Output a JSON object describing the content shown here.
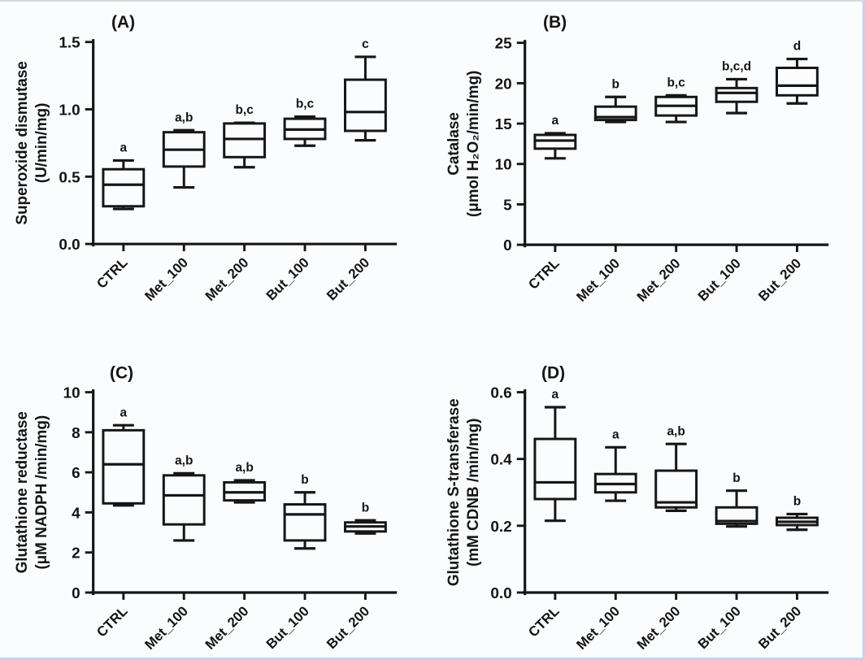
{
  "figure": {
    "background": "#fbfcfd",
    "ink_color": "#161616",
    "box_fill": "#fbfcfd",
    "border_top_color": "#d8d9dc",
    "border_accent_color": "#c3d2ee",
    "panel_order": [
      "(A)",
      "(B)",
      "(C)",
      "(D)"
    ]
  },
  "chart_data": [
    {
      "type": "box",
      "panel_label": "(A)",
      "title": "",
      "xlabel": "",
      "ylabel": "Superoxide dismutase (U/min/mg)",
      "ylabel_lines": [
        "Superoxide dismutase",
        "(U/min/mg)"
      ],
      "ylim": [
        0,
        1.5
      ],
      "yticks": [
        0,
        0.5,
        1.0,
        1.5
      ],
      "ytick_labels": [
        "0.0",
        "0.5",
        "1.0",
        "1.5"
      ],
      "grid": "off",
      "legend": "none",
      "categories": [
        "CTRL",
        "Met_100",
        "Met_200",
        "But_100",
        "But_200"
      ],
      "boxes": [
        {
          "category": "CTRL",
          "whislo": 0.26,
          "q1": 0.28,
          "med": 0.44,
          "q3": 0.555,
          "whishi": 0.62,
          "annotation": "a"
        },
        {
          "category": "Met_100",
          "whislo": 0.42,
          "q1": 0.575,
          "med": 0.7,
          "q3": 0.83,
          "whishi": 0.845,
          "annotation": "a,b"
        },
        {
          "category": "Met_200",
          "whislo": 0.57,
          "q1": 0.645,
          "med": 0.78,
          "q3": 0.895,
          "whishi": 0.9,
          "annotation": "b,c"
        },
        {
          "category": "But_100",
          "whislo": 0.73,
          "q1": 0.78,
          "med": 0.85,
          "q3": 0.93,
          "whishi": 0.945,
          "annotation": "b,c"
        },
        {
          "category": "But_200",
          "whislo": 0.77,
          "q1": 0.84,
          "med": 0.98,
          "q3": 1.22,
          "whishi": 1.39,
          "annotation": "c"
        }
      ]
    },
    {
      "type": "box",
      "panel_label": "(B)",
      "title": "",
      "xlabel": "",
      "ylabel": "Catalase (μmol H₂O₂/min/mg)",
      "ylabel_lines": [
        "Catalase",
        "(μmol H₂O₂/min/mg)"
      ],
      "ylim": [
        0,
        25
      ],
      "yticks": [
        0,
        5,
        10,
        15,
        20,
        25
      ],
      "ytick_labels": [
        "0",
        "5",
        "10",
        "15",
        "20",
        "25"
      ],
      "grid": "off",
      "legend": "none",
      "categories": [
        "CTRL",
        "Met_100",
        "Met_200",
        "But_100",
        "But_200"
      ],
      "boxes": [
        {
          "category": "CTRL",
          "whislo": 10.7,
          "q1": 11.9,
          "med": 12.9,
          "q3": 13.6,
          "whishi": 13.8,
          "annotation": "a"
        },
        {
          "category": "Met_100",
          "whislo": 15.2,
          "q1": 15.45,
          "med": 15.8,
          "q3": 17.1,
          "whishi": 18.3,
          "annotation": "b"
        },
        {
          "category": "Met_200",
          "whislo": 15.2,
          "q1": 16.0,
          "med": 17.2,
          "q3": 18.3,
          "whishi": 18.5,
          "annotation": "b,c"
        },
        {
          "category": "But_100",
          "whislo": 16.3,
          "q1": 17.7,
          "med": 18.8,
          "q3": 19.4,
          "whishi": 20.5,
          "annotation": "b,c,d"
        },
        {
          "category": "But_200",
          "whislo": 17.5,
          "q1": 18.5,
          "med": 19.7,
          "q3": 21.9,
          "whishi": 23.0,
          "annotation": "d"
        }
      ]
    },
    {
      "type": "box",
      "panel_label": "(C)",
      "title": "",
      "xlabel": "",
      "ylabel": "Glutathione reductase (μM NADPH /min/mg)",
      "ylabel_lines": [
        "Glutathione reductase",
        "(μM NADPH /min/mg)"
      ],
      "ylim": [
        0,
        10
      ],
      "yticks": [
        0,
        2,
        4,
        6,
        8,
        10
      ],
      "ytick_labels": [
        "0",
        "2",
        "4",
        "6",
        "8",
        "10"
      ],
      "grid": "off",
      "legend": "none",
      "categories": [
        "CTRL",
        "Met_100",
        "Met_200",
        "But_100",
        "But_200"
      ],
      "boxes": [
        {
          "category": "CTRL",
          "whislo": 4.35,
          "q1": 4.45,
          "med": 6.4,
          "q3": 8.1,
          "whishi": 8.35,
          "annotation": "a"
        },
        {
          "category": "Met_100",
          "whislo": 2.6,
          "q1": 3.4,
          "med": 4.85,
          "q3": 5.85,
          "whishi": 5.95,
          "annotation": "a,b"
        },
        {
          "category": "Met_200",
          "whislo": 4.5,
          "q1": 4.6,
          "med": 5.0,
          "q3": 5.5,
          "whishi": 5.6,
          "annotation": "a,b"
        },
        {
          "category": "But_100",
          "whislo": 2.2,
          "q1": 2.6,
          "med": 3.9,
          "q3": 4.4,
          "whishi": 5.0,
          "annotation": "b"
        },
        {
          "category": "But_200",
          "whislo": 2.95,
          "q1": 3.05,
          "med": 3.3,
          "q3": 3.5,
          "whishi": 3.6,
          "annotation": "b"
        }
      ]
    },
    {
      "type": "box",
      "panel_label": "(D)",
      "title": "",
      "xlabel": "",
      "ylabel": "Glutathione S-transferase (mM CDNB /min/mg)",
      "ylabel_lines": [
        "Glutathione S-transferase",
        "(mM CDNB /min/mg)"
      ],
      "ylim": [
        0,
        0.6
      ],
      "yticks": [
        0,
        0.2,
        0.4,
        0.6
      ],
      "ytick_labels": [
        "0.0",
        "0.2",
        "0.4",
        "0.6"
      ],
      "grid": "off",
      "legend": "none",
      "categories": [
        "CTRL",
        "Met_100",
        "Met_200",
        "But_100",
        "But_200"
      ],
      "boxes": [
        {
          "category": "CTRL",
          "whislo": 0.215,
          "q1": 0.28,
          "med": 0.33,
          "q3": 0.46,
          "whishi": 0.555,
          "annotation": "a"
        },
        {
          "category": "Met_100",
          "whislo": 0.275,
          "q1": 0.3,
          "med": 0.325,
          "q3": 0.355,
          "whishi": 0.435,
          "annotation": "a"
        },
        {
          "category": "Met_200",
          "whislo": 0.245,
          "q1": 0.255,
          "med": 0.27,
          "q3": 0.365,
          "whishi": 0.445,
          "annotation": "a,b"
        },
        {
          "category": "But_100",
          "whislo": 0.198,
          "q1": 0.206,
          "med": 0.214,
          "q3": 0.255,
          "whishi": 0.305,
          "annotation": "b"
        },
        {
          "category": "But_200",
          "whislo": 0.188,
          "q1": 0.202,
          "med": 0.212,
          "q3": 0.224,
          "whishi": 0.235,
          "annotation": "b"
        }
      ]
    }
  ]
}
